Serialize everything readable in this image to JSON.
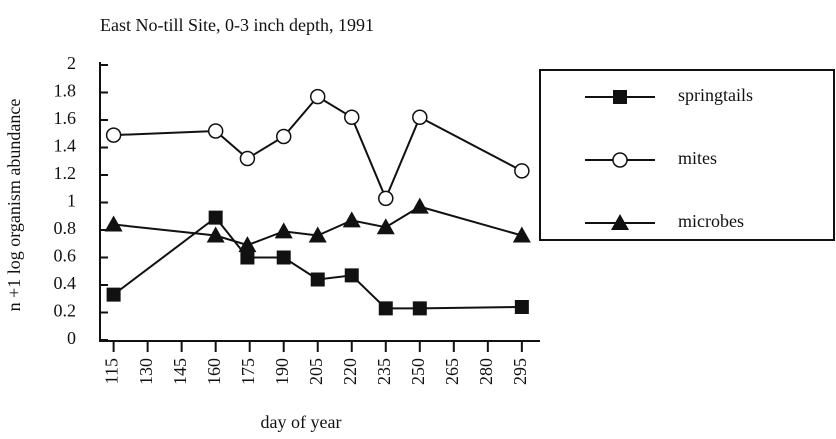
{
  "chart_data": {
    "type": "line",
    "title": "East No-till  Site, 0-3 inch depth, 1991",
    "xlabel": "day of year",
    "ylabel": "n +1 log organism abundance",
    "x": [
      115,
      160,
      174,
      190,
      205,
      220,
      235,
      250,
      295
    ],
    "series": [
      {
        "name": "springtails",
        "marker": "square",
        "color": "#111111",
        "values": [
          0.33,
          0.89,
          0.6,
          0.6,
          0.44,
          0.47,
          0.23,
          0.23,
          0.24
        ]
      },
      {
        "name": "mites",
        "marker": "circle",
        "color": "#111111",
        "values": [
          1.49,
          1.52,
          1.32,
          1.48,
          1.77,
          1.62,
          1.03,
          1.62,
          1.23
        ]
      },
      {
        "name": "microbes",
        "marker": "triangle",
        "color": "#111111",
        "values": [
          0.84,
          0.76,
          0.69,
          0.79,
          0.76,
          0.87,
          0.82,
          0.97,
          0.76
        ]
      }
    ],
    "xlim": [
      109,
      303
    ],
    "xticks": [
      115,
      130,
      145,
      160,
      175,
      190,
      205,
      220,
      235,
      250,
      265,
      280,
      295
    ],
    "ylim": [
      0,
      2
    ],
    "yticks": [
      0,
      0.2,
      0.4,
      0.6,
      0.8,
      1,
      1.2,
      1.4,
      1.6,
      1.8,
      2
    ],
    "legend": "right"
  }
}
